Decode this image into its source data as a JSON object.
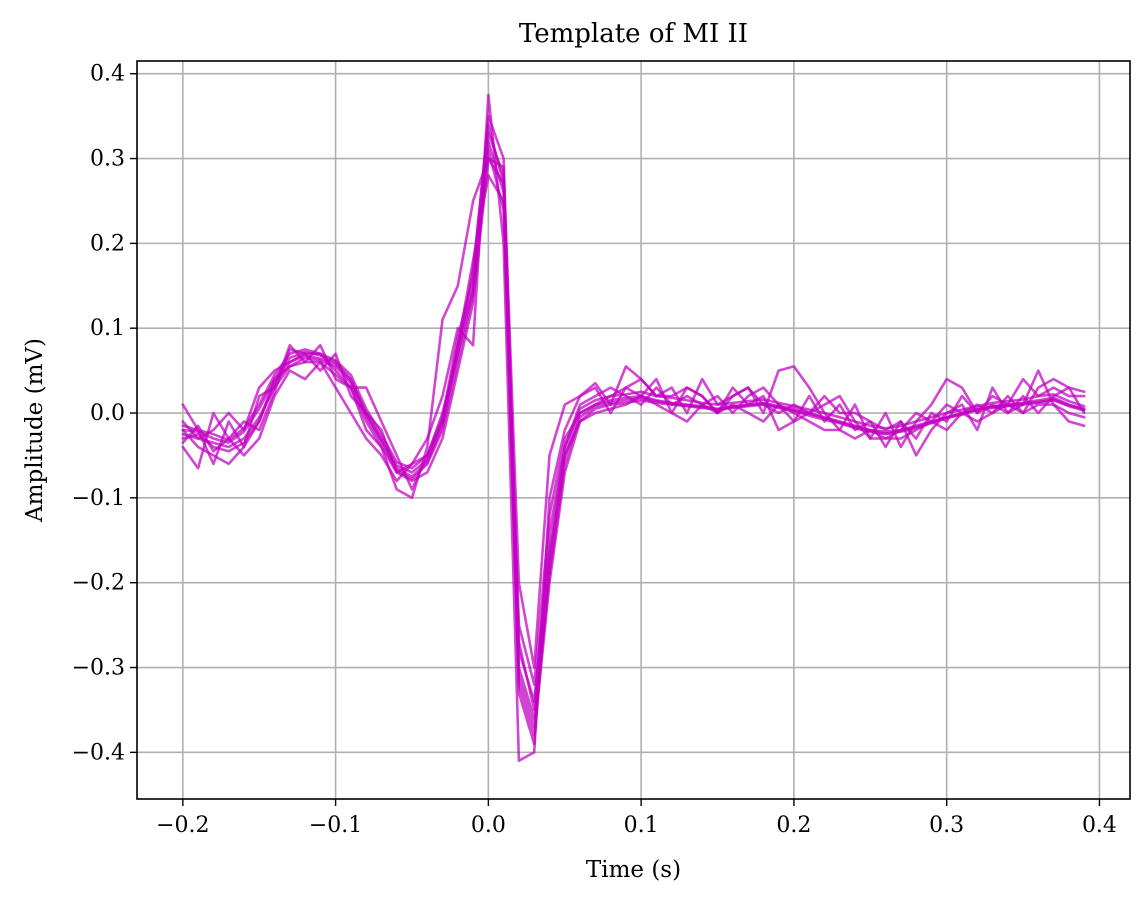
{
  "chart_data": {
    "type": "line",
    "title": "Template of MI II",
    "xlabel": "Time (s)",
    "ylabel": "Amplitude (mV)",
    "xlim": [
      -0.23,
      0.42
    ],
    "ylim": [
      -0.455,
      0.415
    ],
    "xticks": [
      -0.2,
      -0.1,
      0.0,
      0.1,
      0.2,
      0.3,
      0.4
    ],
    "xtick_labels": [
      "−0.2",
      "−0.1",
      "0.0",
      "0.1",
      "0.2",
      "0.3",
      "0.4"
    ],
    "yticks": [
      0.4,
      0.3,
      0.2,
      0.1,
      0.0,
      -0.1,
      -0.2,
      -0.3,
      -0.4
    ],
    "ytick_labels": [
      "0.4",
      "0.3",
      "0.2",
      "0.1",
      "0.0",
      "−0.1",
      "−0.2",
      "−0.3",
      "−0.4"
    ],
    "grid": true,
    "legend": "none",
    "series_color": "#c000c0",
    "series_opacity": 0.72,
    "x": [
      -0.2,
      -0.19,
      -0.18,
      -0.17,
      -0.16,
      -0.15,
      -0.14,
      -0.13,
      -0.12,
      -0.11,
      -0.1,
      -0.09,
      -0.08,
      -0.07,
      -0.06,
      -0.05,
      -0.04,
      -0.03,
      -0.02,
      -0.01,
      0.0,
      0.01,
      0.02,
      0.03,
      0.04,
      0.05,
      0.06,
      0.07,
      0.08,
      0.09,
      0.1,
      0.11,
      0.12,
      0.13,
      0.14,
      0.15,
      0.16,
      0.17,
      0.18,
      0.19,
      0.2,
      0.21,
      0.22,
      0.23,
      0.24,
      0.25,
      0.26,
      0.27,
      0.28,
      0.29,
      0.3,
      0.31,
      0.32,
      0.33,
      0.34,
      0.35,
      0.36,
      0.37,
      0.38,
      0.39
    ],
    "series": [
      {
        "values": [
          -0.02,
          -0.022,
          -0.03,
          -0.035,
          -0.022,
          0.005,
          0.04,
          0.065,
          0.072,
          0.068,
          0.06,
          0.04,
          0.0,
          -0.03,
          -0.062,
          -0.07,
          -0.055,
          -0.01,
          0.08,
          0.15,
          0.33,
          0.28,
          -0.3,
          -0.36,
          -0.18,
          -0.05,
          0.0,
          0.01,
          0.015,
          0.018,
          0.02,
          0.015,
          0.012,
          0.01,
          0.008,
          0.005,
          0.008,
          0.01,
          0.012,
          0.008,
          0.005,
          0.0,
          -0.005,
          -0.01,
          -0.015,
          -0.02,
          -0.022,
          -0.02,
          -0.015,
          -0.01,
          -0.005,
          0.0,
          0.005,
          0.008,
          0.01,
          0.012,
          0.015,
          0.018,
          0.01,
          0.005
        ]
      },
      {
        "values": [
          -0.025,
          -0.03,
          -0.035,
          -0.04,
          -0.03,
          -0.005,
          0.03,
          0.055,
          0.065,
          0.062,
          0.055,
          0.035,
          -0.005,
          -0.035,
          -0.068,
          -0.078,
          -0.06,
          -0.02,
          0.06,
          0.14,
          0.31,
          0.24,
          -0.32,
          -0.38,
          -0.2,
          -0.07,
          -0.01,
          0.005,
          0.01,
          0.012,
          0.015,
          0.012,
          0.01,
          0.008,
          0.006,
          0.004,
          0.006,
          0.008,
          0.01,
          0.006,
          0.002,
          -0.003,
          -0.008,
          -0.012,
          -0.018,
          -0.022,
          -0.025,
          -0.022,
          -0.018,
          -0.012,
          -0.006,
          -0.002,
          0.004,
          0.006,
          0.008,
          0.01,
          0.012,
          0.015,
          0.008,
          0.003
        ]
      },
      {
        "values": [
          -0.015,
          -0.02,
          -0.025,
          -0.032,
          -0.018,
          0.01,
          0.045,
          0.07,
          0.075,
          0.07,
          0.062,
          0.045,
          0.005,
          -0.025,
          -0.058,
          -0.065,
          -0.05,
          -0.005,
          0.09,
          0.16,
          0.35,
          0.3,
          -0.28,
          -0.34,
          -0.16,
          -0.04,
          0.005,
          0.015,
          0.02,
          0.022,
          0.025,
          0.02,
          0.018,
          0.015,
          0.012,
          0.01,
          0.012,
          0.014,
          0.016,
          0.012,
          0.008,
          0.004,
          0.0,
          -0.005,
          -0.01,
          -0.015,
          -0.018,
          -0.015,
          -0.01,
          -0.005,
          0.0,
          0.004,
          0.008,
          0.012,
          0.014,
          0.016,
          0.02,
          0.022,
          0.014,
          0.008
        ]
      },
      {
        "values": [
          -0.03,
          -0.025,
          -0.04,
          -0.045,
          -0.035,
          -0.01,
          0.035,
          0.06,
          0.068,
          0.064,
          0.058,
          0.038,
          -0.002,
          -0.032,
          -0.065,
          -0.075,
          -0.058,
          -0.015,
          0.07,
          0.145,
          0.32,
          0.26,
          -0.31,
          -0.37,
          -0.19,
          -0.06,
          -0.005,
          0.008,
          0.012,
          0.015,
          0.018,
          0.014,
          0.011,
          0.009,
          0.007,
          0.004,
          0.007,
          0.009,
          0.011,
          0.007,
          0.003,
          -0.001,
          -0.006,
          -0.011,
          -0.016,
          -0.021,
          -0.024,
          -0.021,
          -0.016,
          -0.011,
          -0.005,
          -0.001,
          0.004,
          0.007,
          0.009,
          0.011,
          0.013,
          0.016,
          0.009,
          0.004
        ]
      },
      {
        "values": [
          0.01,
          -0.02,
          -0.06,
          -0.01,
          -0.04,
          0.02,
          0.03,
          0.08,
          0.06,
          0.08,
          0.04,
          0.03,
          -0.02,
          -0.04,
          -0.09,
          -0.1,
          -0.04,
          0.11,
          0.15,
          0.25,
          0.3,
          0.29,
          -0.2,
          -0.3,
          -0.05,
          0.01,
          0.02,
          0.035,
          0.01,
          0.055,
          0.04,
          0.02,
          0.03,
          0.0,
          0.04,
          0.01,
          0.02,
          0.03,
          0.0,
          0.05,
          0.055,
          0.03,
          0.0,
          -0.02,
          0.01,
          -0.03,
          0.0,
          -0.04,
          -0.01,
          0.01,
          0.04,
          0.03,
          0.0,
          0.02,
          0.01,
          0.04,
          0.02,
          0.03,
          0.02,
          0.02
        ]
      },
      {
        "values": [
          -0.04,
          -0.065,
          0.0,
          -0.03,
          -0.05,
          -0.03,
          0.02,
          0.05,
          0.04,
          0.06,
          0.03,
          0.0,
          -0.03,
          -0.05,
          -0.08,
          -0.06,
          -0.03,
          0.02,
          0.1,
          0.08,
          0.375,
          0.2,
          -0.41,
          -0.4,
          -0.1,
          -0.02,
          0.02,
          0.03,
          0.0,
          0.03,
          0.02,
          0.04,
          0.0,
          0.03,
          0.02,
          0.0,
          0.03,
          0.01,
          0.02,
          -0.02,
          -0.01,
          0.02,
          -0.01,
          0.01,
          -0.02,
          -0.01,
          -0.04,
          -0.01,
          -0.05,
          -0.02,
          0.0,
          0.01,
          -0.02,
          0.03,
          0.0,
          0.01,
          0.05,
          0.01,
          -0.01,
          -0.015
        ]
      },
      {
        "values": [
          -0.01,
          -0.03,
          -0.02,
          0.0,
          -0.02,
          0.03,
          0.05,
          0.06,
          0.07,
          0.07,
          0.05,
          0.03,
          0.03,
          -0.01,
          -0.05,
          -0.09,
          -0.05,
          -0.01,
          0.08,
          0.18,
          0.28,
          0.25,
          -0.25,
          -0.32,
          -0.12,
          -0.03,
          0.0,
          0.01,
          0.02,
          0.03,
          0.04,
          0.02,
          0.02,
          0.03,
          0.02,
          0.0,
          0.02,
          0.03,
          0.01,
          0.0,
          0.01,
          0.0,
          0.01,
          0.02,
          -0.01,
          -0.03,
          -0.03,
          -0.02,
          0.0,
          -0.01,
          -0.02,
          0.0,
          0.01,
          0.0,
          0.02,
          0.0,
          0.03,
          0.04,
          0.03,
          0.025
        ]
      },
      {
        "values": [
          -0.02,
          -0.04,
          -0.05,
          -0.06,
          -0.04,
          -0.01,
          0.04,
          0.055,
          0.06,
          0.06,
          0.045,
          0.03,
          -0.01,
          -0.04,
          -0.07,
          -0.08,
          -0.07,
          -0.03,
          0.05,
          0.13,
          0.3,
          0.27,
          -0.33,
          -0.39,
          -0.17,
          -0.05,
          -0.01,
          0.0,
          0.005,
          0.01,
          0.02,
          0.01,
          0.0,
          -0.01,
          0.01,
          0.0,
          0.01,
          0.0,
          -0.01,
          0.01,
          0.0,
          -0.01,
          -0.02,
          -0.02,
          -0.03,
          -0.02,
          -0.03,
          -0.03,
          -0.02,
          -0.01,
          0.01,
          0.0,
          -0.01,
          0.0,
          0.01,
          0.0,
          0.01,
          0.01,
          0.0,
          -0.005
        ]
      },
      {
        "values": [
          -0.035,
          -0.015,
          -0.045,
          -0.03,
          -0.01,
          -0.02,
          0.025,
          0.075,
          0.07,
          0.05,
          0.07,
          0.02,
          0.0,
          -0.02,
          -0.07,
          -0.06,
          -0.05,
          0.0,
          0.07,
          0.17,
          0.34,
          0.27,
          -0.27,
          -0.35,
          -0.14,
          -0.04,
          0.01,
          0.02,
          0.03,
          0.02,
          0.01,
          0.03,
          0.01,
          0.02,
          0.01,
          0.02,
          0.0,
          0.02,
          0.03,
          0.01,
          -0.01,
          0.0,
          0.02,
          0.0,
          0.0,
          -0.01,
          -0.02,
          -0.01,
          -0.03,
          0.0,
          -0.01,
          0.02,
          0.0,
          0.01,
          0.0,
          0.02,
          0.0,
          0.02,
          0.03,
          0.0
        ]
      }
    ]
  }
}
